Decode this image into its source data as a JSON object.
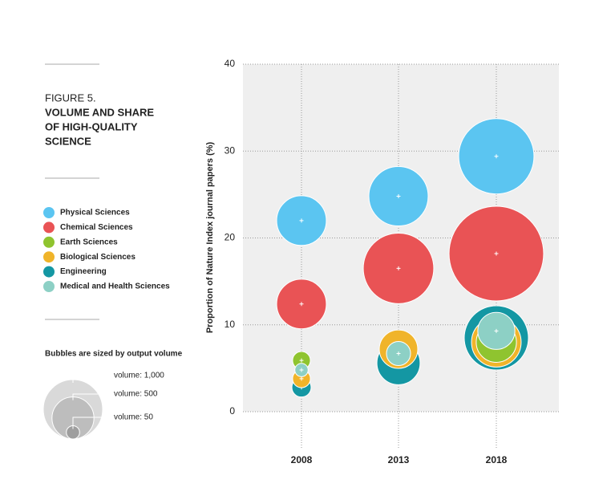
{
  "chart_data": {
    "type": "bubble",
    "figure_label": "FIGURE 5.",
    "title": [
      "VOLUME AND SHARE",
      "OF HIGH-QUALITY",
      "SCIENCE"
    ],
    "y_label": "Proportion of Nature Index journal papers (%)",
    "categories": [
      "2008",
      "2013",
      "2018"
    ],
    "ylim": [
      0,
      40
    ],
    "yticks": [
      0,
      10,
      20,
      30,
      40
    ],
    "grid": true,
    "series": [
      {
        "name": "Physical Sciences",
        "color": "#5bc5f1",
        "values": [
          22,
          24.8,
          29.4
        ],
        "sizes": [
          700,
          1000,
          1610
        ]
      },
      {
        "name": "Chemical Sciences",
        "color": "#e95355",
        "values": [
          12.4,
          16.5,
          18.2
        ],
        "sizes": [
          700,
          1410,
          2540
        ]
      },
      {
        "name": "Earth Sciences",
        "color": "#8fc42f",
        "values": [
          5.9,
          null,
          8
        ],
        "sizes": [
          90,
          null,
          460
        ]
      },
      {
        "name": "Biological Sciences",
        "color": "#f0b42a",
        "values": [
          3.8,
          7.2,
          8
        ],
        "sizes": [
          90,
          420,
          700
        ]
      },
      {
        "name": "Engineering",
        "color": "#1497a3",
        "values": [
          2.8,
          5.6,
          8.5
        ],
        "sizes": [
          105,
          530,
          1170
        ]
      },
      {
        "name": "Medical and Health Sciences",
        "color": "#8dd0c5",
        "values": [
          4.8,
          6.7,
          9.3
        ],
        "sizes": [
          50,
          165,
          390
        ]
      }
    ],
    "size_legend": {
      "title": "Bubbles are sized by output volume",
      "values": [
        1000,
        500,
        50
      ],
      "value_labels": [
        "volume: 1,000",
        "volume: 500",
        "volume: 50"
      ]
    }
  }
}
